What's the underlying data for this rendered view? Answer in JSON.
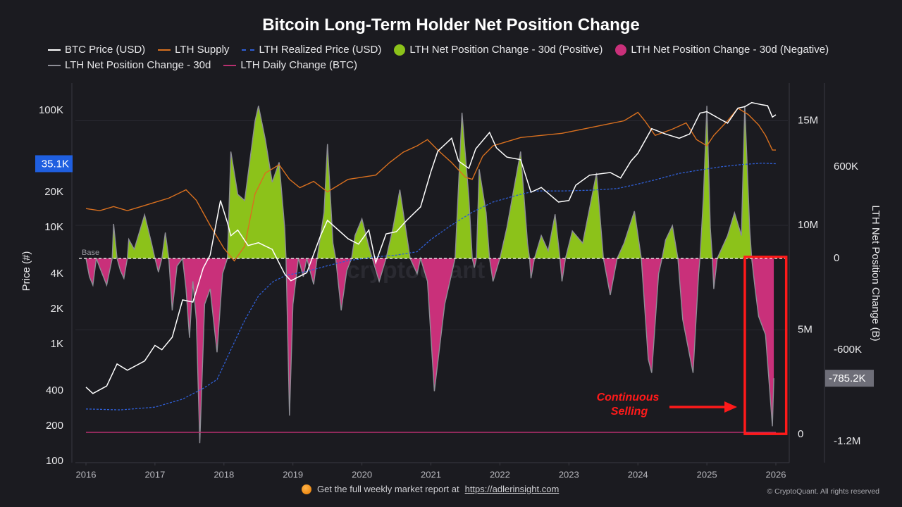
{
  "title": "Bitcoin Long-Term Holder Net Position Change",
  "legend": [
    {
      "label": "BTC Price (USD)",
      "color": "#ffffff",
      "style": "line"
    },
    {
      "label": "LTH Supply",
      "color": "#d9701f",
      "style": "line"
    },
    {
      "label": "LTH Realized Price (USD)",
      "color": "#2f5fd6",
      "style": "dashed"
    },
    {
      "label": "LTH Net Position Change - 30d (Positive)",
      "color": "#8cc21a",
      "style": "dot"
    },
    {
      "label": "LTH Net Position Change - 30d (Negative)",
      "color": "#c9307a",
      "style": "dot"
    },
    {
      "label": "LTH Net Position Change - 30d",
      "color": "#8e8e96",
      "style": "line"
    },
    {
      "label": "LTH Daily Change (BTC)",
      "color": "#b8306f",
      "style": "line"
    }
  ],
  "footer": {
    "text": "Get the full weekly market report at",
    "link": "https://adlerinsight.com",
    "copyright": "© CryptoQuant. All rights reserved"
  },
  "chart_data": {
    "type": "line",
    "title": "Bitcoin Long-Term Holder Net Position Change",
    "x_ticks": [
      "2016",
      "2017",
      "2018",
      "2019",
      "2020",
      "2021",
      "2022",
      "2023",
      "2024",
      "2025",
      "2026"
    ],
    "xlim": [
      2015.85,
      2026.2
    ],
    "y_left": {
      "label": "Price (#)",
      "scale": "log",
      "range": [
        100,
        150000
      ],
      "ticks": [
        "100",
        "200",
        "400",
        "1K",
        "2K",
        "4K",
        "10K",
        "20K",
        "100K"
      ],
      "tick_values": [
        100,
        200,
        400,
        1000,
        2000,
        4000,
        10000,
        20000,
        100000
      ],
      "marker": "35.1K",
      "marker_value": 35100,
      "marker_color": "#1f5fe0"
    },
    "y_mid": {
      "label": "",
      "range": [
        -0.3,
        17
      ],
      "ticks": [
        "0",
        "5M",
        "10M",
        "15M"
      ],
      "tick_values": [
        0,
        5,
        10,
        15
      ],
      "unit": "M"
    },
    "y_right": {
      "label": "LTH Net Position Change (B)",
      "range": [
        -1350,
        1150
      ],
      "ticks": [
        "600K",
        "0",
        "-600K",
        "-1.2M"
      ],
      "tick_values": [
        600,
        0,
        -600,
        -1200
      ],
      "marker": "-785.2K",
      "marker_value": -785.2,
      "unit": "K BTC"
    },
    "grid": true,
    "legend_position": "top",
    "base_label": "Base",
    "annotation": {
      "text_line1": "Continuous",
      "text_line2": "Selling",
      "color": "#ff1a1a",
      "box_x": [
        2025.55,
        2026.15
      ],
      "box_y": [
        10,
        -1150
      ]
    },
    "series": {
      "btc_price": [
        [
          2016.0,
          430
        ],
        [
          2016.1,
          380
        ],
        [
          2016.3,
          440
        ],
        [
          2016.45,
          680
        ],
        [
          2016.6,
          600
        ],
        [
          2016.85,
          720
        ],
        [
          2017.0,
          980
        ],
        [
          2017.1,
          900
        ],
        [
          2017.25,
          1150
        ],
        [
          2017.4,
          2400
        ],
        [
          2017.55,
          2300
        ],
        [
          2017.7,
          4500
        ],
        [
          2017.8,
          5800
        ],
        [
          2017.95,
          17000
        ],
        [
          2018.05,
          11000
        ],
        [
          2018.1,
          8500
        ],
        [
          2018.2,
          9500
        ],
        [
          2018.35,
          7000
        ],
        [
          2018.5,
          7400
        ],
        [
          2018.7,
          6500
        ],
        [
          2018.88,
          4000
        ],
        [
          2018.97,
          3500
        ],
        [
          2019.2,
          4100
        ],
        [
          2019.4,
          8500
        ],
        [
          2019.5,
          11500
        ],
        [
          2019.6,
          10200
        ],
        [
          2019.8,
          8000
        ],
        [
          2019.95,
          7200
        ],
        [
          2020.1,
          9500
        ],
        [
          2020.2,
          5000
        ],
        [
          2020.35,
          8800
        ],
        [
          2020.5,
          9200
        ],
        [
          2020.65,
          11500
        ],
        [
          2020.85,
          15000
        ],
        [
          2021.0,
          30000
        ],
        [
          2021.1,
          45000
        ],
        [
          2021.3,
          58000
        ],
        [
          2021.4,
          37000
        ],
        [
          2021.55,
          32000
        ],
        [
          2021.65,
          47000
        ],
        [
          2021.85,
          65000
        ],
        [
          2021.95,
          48000
        ],
        [
          2022.1,
          40000
        ],
        [
          2022.3,
          38000
        ],
        [
          2022.45,
          20000
        ],
        [
          2022.6,
          22000
        ],
        [
          2022.85,
          16500
        ],
        [
          2023.0,
          17000
        ],
        [
          2023.1,
          23000
        ],
        [
          2023.3,
          28000
        ],
        [
          2023.6,
          29500
        ],
        [
          2023.75,
          26500
        ],
        [
          2023.9,
          37000
        ],
        [
          2024.0,
          43000
        ],
        [
          2024.2,
          70000
        ],
        [
          2024.4,
          63000
        ],
        [
          2024.6,
          58000
        ],
        [
          2024.75,
          63000
        ],
        [
          2024.9,
          95000
        ],
        [
          2025.0,
          98000
        ],
        [
          2025.2,
          84000
        ],
        [
          2025.3,
          78000
        ],
        [
          2025.45,
          105000
        ],
        [
          2025.55,
          108000
        ],
        [
          2025.65,
          117000
        ],
        [
          2025.8,
          112000
        ],
        [
          2025.88,
          110000
        ],
        [
          2025.95,
          88000
        ],
        [
          2026.0,
          92000
        ]
      ],
      "lth_supply_m": [
        [
          2016.0,
          10.8
        ],
        [
          2016.2,
          10.7
        ],
        [
          2016.4,
          10.9
        ],
        [
          2016.6,
          10.7
        ],
        [
          2016.8,
          10.9
        ],
        [
          2017.0,
          11.1
        ],
        [
          2017.2,
          11.3
        ],
        [
          2017.45,
          11.7
        ],
        [
          2017.6,
          11.2
        ],
        [
          2017.8,
          10.0
        ],
        [
          2018.0,
          8.9
        ],
        [
          2018.15,
          8.3
        ],
        [
          2018.3,
          9.0
        ],
        [
          2018.45,
          11.5
        ],
        [
          2018.6,
          12.5
        ],
        [
          2018.8,
          12.9
        ],
        [
          2018.95,
          12.2
        ],
        [
          2019.1,
          11.8
        ],
        [
          2019.3,
          12.1
        ],
        [
          2019.5,
          11.6
        ],
        [
          2019.8,
          12.2
        ],
        [
          2020.0,
          12.3
        ],
        [
          2020.2,
          12.4
        ],
        [
          2020.4,
          13.0
        ],
        [
          2020.6,
          13.5
        ],
        [
          2020.8,
          13.8
        ],
        [
          2020.95,
          14.1
        ],
        [
          2021.1,
          13.6
        ],
        [
          2021.3,
          13.0
        ],
        [
          2021.5,
          12.3
        ],
        [
          2021.6,
          12.2
        ],
        [
          2021.75,
          13.3
        ],
        [
          2021.9,
          13.8
        ],
        [
          2022.1,
          14.0
        ],
        [
          2022.3,
          14.2
        ],
        [
          2022.6,
          14.3
        ],
        [
          2022.9,
          14.4
        ],
        [
          2023.2,
          14.6
        ],
        [
          2023.5,
          14.8
        ],
        [
          2023.8,
          15.0
        ],
        [
          2024.0,
          15.4
        ],
        [
          2024.1,
          15.0
        ],
        [
          2024.25,
          14.3
        ],
        [
          2024.5,
          14.6
        ],
        [
          2024.7,
          14.9
        ],
        [
          2024.85,
          14.1
        ],
        [
          2025.0,
          13.8
        ],
        [
          2025.1,
          14.3
        ],
        [
          2025.3,
          15.0
        ],
        [
          2025.45,
          15.6
        ],
        [
          2025.6,
          15.3
        ],
        [
          2025.75,
          14.8
        ],
        [
          2025.85,
          14.3
        ],
        [
          2025.95,
          13.6
        ],
        [
          2026.0,
          13.6
        ]
      ],
      "lth_realized_price": [
        [
          2016.0,
          280
        ],
        [
          2016.5,
          275
        ],
        [
          2017.0,
          290
        ],
        [
          2017.4,
          340
        ],
        [
          2017.7,
          420
        ],
        [
          2017.9,
          500
        ],
        [
          2018.1,
          900
        ],
        [
          2018.3,
          1600
        ],
        [
          2018.5,
          2600
        ],
        [
          2018.7,
          3400
        ],
        [
          2018.9,
          3900
        ],
        [
          2019.2,
          4200
        ],
        [
          2019.5,
          4700
        ],
        [
          2019.8,
          5200
        ],
        [
          2020.2,
          5600
        ],
        [
          2020.5,
          5800
        ],
        [
          2020.8,
          6200
        ],
        [
          2021.0,
          7900
        ],
        [
          2021.3,
          10500
        ],
        [
          2021.6,
          13500
        ],
        [
          2021.9,
          16500
        ],
        [
          2022.2,
          18500
        ],
        [
          2022.5,
          20500
        ],
        [
          2022.9,
          20500
        ],
        [
          2023.3,
          20800
        ],
        [
          2023.7,
          21500
        ],
        [
          2024.0,
          23500
        ],
        [
          2024.3,
          26000
        ],
        [
          2024.6,
          29000
        ],
        [
          2024.9,
          31000
        ],
        [
          2025.2,
          33000
        ],
        [
          2025.5,
          34500
        ],
        [
          2025.8,
          35500
        ],
        [
          2026.0,
          35100
        ]
      ],
      "net_position_change_30d_k": [
        [
          2016.0,
          0
        ],
        [
          2016.05,
          -120
        ],
        [
          2016.1,
          -175
        ],
        [
          2016.15,
          0
        ],
        [
          2016.2,
          -60
        ],
        [
          2016.3,
          -175
        ],
        [
          2016.38,
          0
        ],
        [
          2016.4,
          226
        ],
        [
          2016.45,
          0
        ],
        [
          2016.5,
          -80
        ],
        [
          2016.55,
          -130
        ],
        [
          2016.6,
          0
        ],
        [
          2016.62,
          125
        ],
        [
          2016.7,
          60
        ],
        [
          2016.85,
          286
        ],
        [
          2016.95,
          100
        ],
        [
          2017.0,
          0
        ],
        [
          2017.05,
          -90
        ],
        [
          2017.1,
          0
        ],
        [
          2017.15,
          170
        ],
        [
          2017.2,
          0
        ],
        [
          2017.25,
          -340
        ],
        [
          2017.32,
          -50
        ],
        [
          2017.4,
          0
        ],
        [
          2017.45,
          -200
        ],
        [
          2017.5,
          -520
        ],
        [
          2017.55,
          -150
        ],
        [
          2017.6,
          -400
        ],
        [
          2017.65,
          -1210
        ],
        [
          2017.72,
          -300
        ],
        [
          2017.8,
          -200
        ],
        [
          2017.9,
          -615
        ],
        [
          2017.98,
          -100
        ],
        [
          2018.05,
          0
        ],
        [
          2018.1,
          700
        ],
        [
          2018.2,
          420
        ],
        [
          2018.3,
          380
        ],
        [
          2018.45,
          900
        ],
        [
          2018.5,
          1000
        ],
        [
          2018.6,
          780
        ],
        [
          2018.7,
          500
        ],
        [
          2018.8,
          630
        ],
        [
          2018.88,
          200
        ],
        [
          2018.9,
          0
        ],
        [
          2018.95,
          -1030
        ],
        [
          2019.0,
          -300
        ],
        [
          2019.08,
          0
        ],
        [
          2019.15,
          -120
        ],
        [
          2019.2,
          0
        ],
        [
          2019.3,
          -170
        ],
        [
          2019.35,
          0
        ],
        [
          2019.45,
          300
        ],
        [
          2019.5,
          750
        ],
        [
          2019.58,
          100
        ],
        [
          2019.62,
          0
        ],
        [
          2019.7,
          -340
        ],
        [
          2019.78,
          -80
        ],
        [
          2019.85,
          0
        ],
        [
          2019.9,
          150
        ],
        [
          2020.0,
          260
        ],
        [
          2020.1,
          80
        ],
        [
          2020.15,
          0
        ],
        [
          2020.25,
          -150
        ],
        [
          2020.35,
          0
        ],
        [
          2020.45,
          200
        ],
        [
          2020.55,
          450
        ],
        [
          2020.65,
          150
        ],
        [
          2020.7,
          0
        ],
        [
          2020.8,
          -100
        ],
        [
          2020.85,
          0
        ],
        [
          2020.95,
          -150
        ],
        [
          2021.05,
          -870
        ],
        [
          2021.2,
          -300
        ],
        [
          2021.35,
          0
        ],
        [
          2021.45,
          955
        ],
        [
          2021.55,
          400
        ],
        [
          2021.6,
          0
        ],
        [
          2021.63,
          -60
        ],
        [
          2021.66,
          0
        ],
        [
          2021.7,
          585
        ],
        [
          2021.8,
          300
        ],
        [
          2021.85,
          0
        ],
        [
          2021.9,
          -150
        ],
        [
          2022.0,
          0
        ],
        [
          2022.1,
          200
        ],
        [
          2022.3,
          700
        ],
        [
          2022.4,
          100
        ],
        [
          2022.43,
          0
        ],
        [
          2022.45,
          -130
        ],
        [
          2022.5,
          0
        ],
        [
          2022.6,
          150
        ],
        [
          2022.7,
          50
        ],
        [
          2022.8,
          290
        ],
        [
          2022.87,
          0
        ],
        [
          2022.9,
          -150
        ],
        [
          2022.95,
          0
        ],
        [
          2023.05,
          180
        ],
        [
          2023.2,
          100
        ],
        [
          2023.4,
          560
        ],
        [
          2023.5,
          0
        ],
        [
          2023.6,
          -240
        ],
        [
          2023.7,
          0
        ],
        [
          2023.8,
          100
        ],
        [
          2023.95,
          310
        ],
        [
          2024.05,
          0
        ],
        [
          2024.15,
          -660
        ],
        [
          2024.2,
          -750
        ],
        [
          2024.3,
          -100
        ],
        [
          2024.35,
          0
        ],
        [
          2024.4,
          120
        ],
        [
          2024.5,
          215
        ],
        [
          2024.58,
          0
        ],
        [
          2024.65,
          -400
        ],
        [
          2024.8,
          -750
        ],
        [
          2024.88,
          -100
        ],
        [
          2024.9,
          0
        ],
        [
          2024.95,
          400
        ],
        [
          2025.0,
          1000
        ],
        [
          2025.05,
          200
        ],
        [
          2025.08,
          0
        ],
        [
          2025.1,
          -200
        ],
        [
          2025.15,
          0
        ],
        [
          2025.3,
          150
        ],
        [
          2025.4,
          300
        ],
        [
          2025.5,
          150
        ],
        [
          2025.55,
          1000
        ],
        [
          2025.62,
          200
        ],
        [
          2025.65,
          0
        ],
        [
          2025.7,
          -200
        ],
        [
          2025.75,
          -380
        ],
        [
          2025.85,
          -500
        ],
        [
          2025.95,
          -1100
        ],
        [
          2025.97,
          -785.2
        ]
      ],
      "daily_change": [
        [
          2016.0,
          0.1
        ],
        [
          2017.0,
          0.1
        ],
        [
          2018.0,
          0.1
        ],
        [
          2019.0,
          0.1
        ],
        [
          2020.0,
          0.1
        ],
        [
          2021.0,
          0.1
        ],
        [
          2022.0,
          0.1
        ],
        [
          2023.0,
          0.1
        ],
        [
          2024.0,
          0.1
        ],
        [
          2025.0,
          0.1
        ],
        [
          2026.0,
          0.1
        ]
      ]
    }
  }
}
